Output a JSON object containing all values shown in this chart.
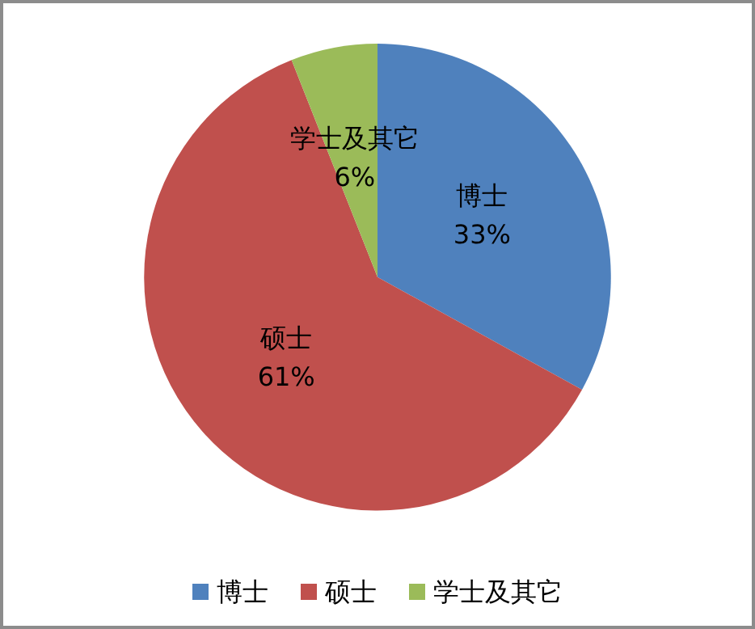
{
  "chart_data": {
    "type": "pie",
    "categories": [
      "博士",
      "硕士",
      "学士及其它"
    ],
    "values": [
      33,
      61,
      6
    ],
    "colors": [
      "#4f81bd",
      "#c0504d",
      "#9bbb59"
    ],
    "value_labels": [
      "33%",
      "61%",
      "6%"
    ],
    "legend": "bottom"
  }
}
